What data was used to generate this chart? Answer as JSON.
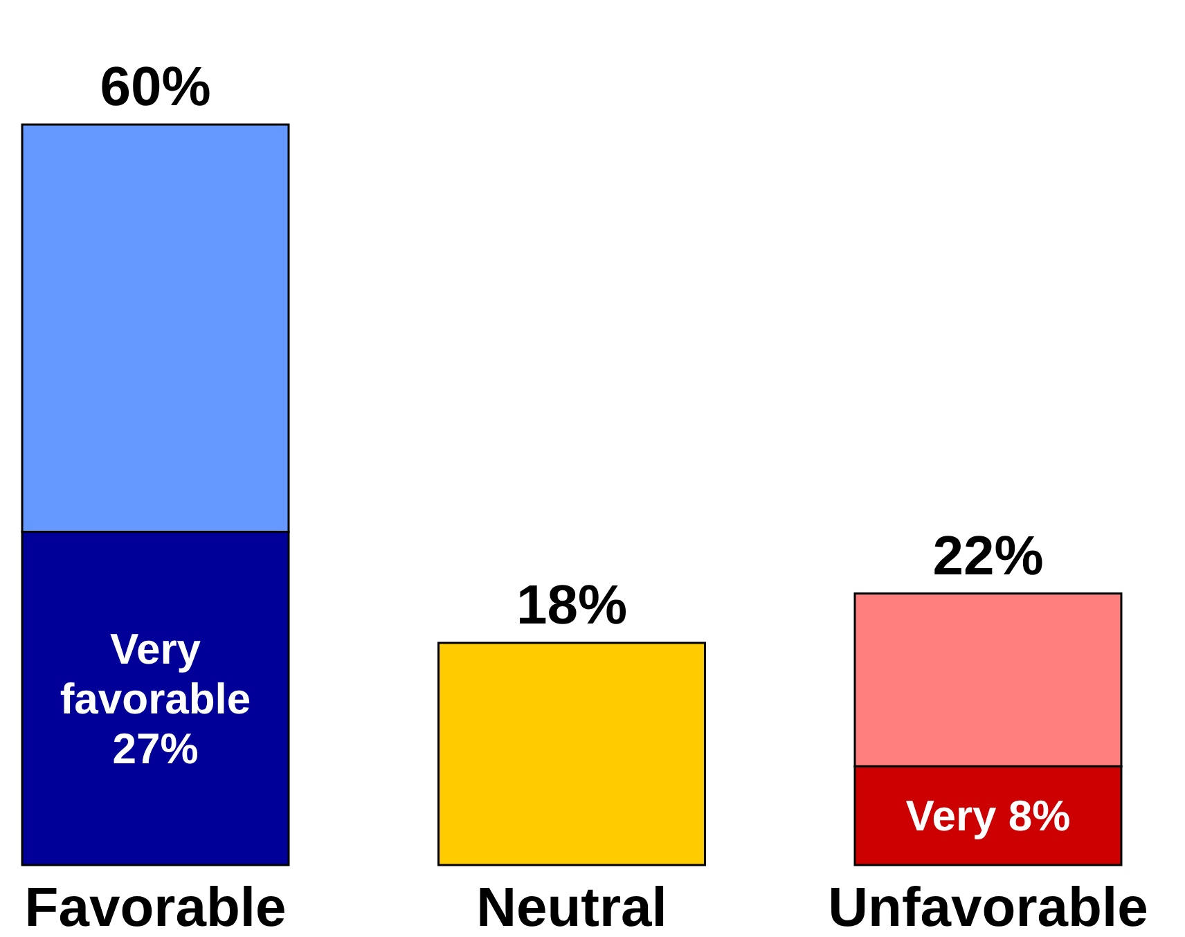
{
  "chart_data": {
    "type": "bar",
    "stacked": true,
    "categories": [
      "Favorable",
      "Neutral",
      "Unfavorable"
    ],
    "series": [
      {
        "values": [
          27,
          18,
          8
        ],
        "colors": [
          "#000099",
          "#ffcc00",
          "#cc0000"
        ],
        "value_labels": [
          "Very favorable 27%",
          null,
          "Very 8%"
        ]
      },
      {
        "values": [
          33,
          null,
          14
        ],
        "colors": [
          "#6699ff",
          null,
          "#ff7f7f"
        ]
      }
    ],
    "totals": [
      "60%",
      "18%",
      "22%"
    ],
    "grid": false
  }
}
